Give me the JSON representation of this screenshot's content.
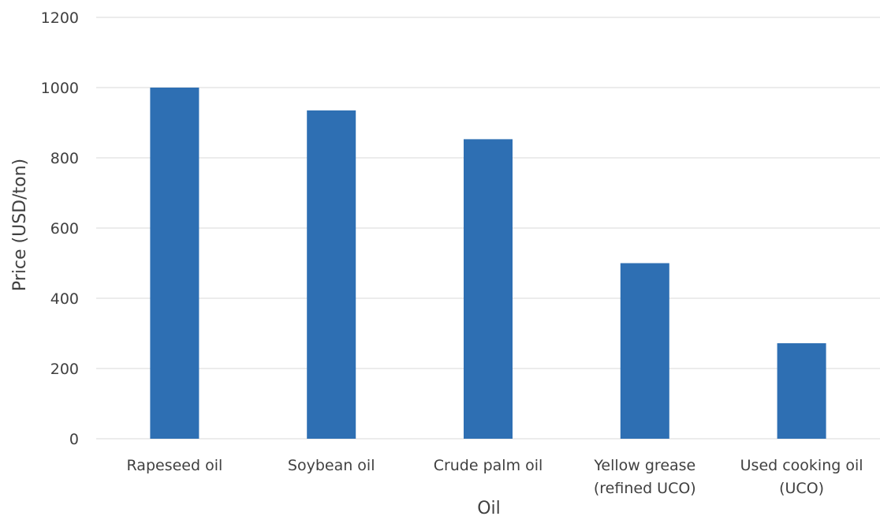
{
  "chart_data": {
    "type": "bar",
    "categories": [
      [
        "Rapeseed oil"
      ],
      [
        "Soybean oil"
      ],
      [
        "Crude palm oil"
      ],
      [
        "Yellow grease",
        "(refined UCO)"
      ],
      [
        "Used cooking oil",
        "(UCO)"
      ]
    ],
    "values": [
      1000,
      935,
      853,
      500,
      272
    ],
    "xlabel": "Oil",
    "ylabel": "Price (USD/ton)",
    "ylim": [
      0,
      1200
    ],
    "yticks": [
      0,
      200,
      400,
      600,
      800,
      1000,
      1200
    ],
    "grid": true,
    "bar_color": "#2e6fb3"
  }
}
